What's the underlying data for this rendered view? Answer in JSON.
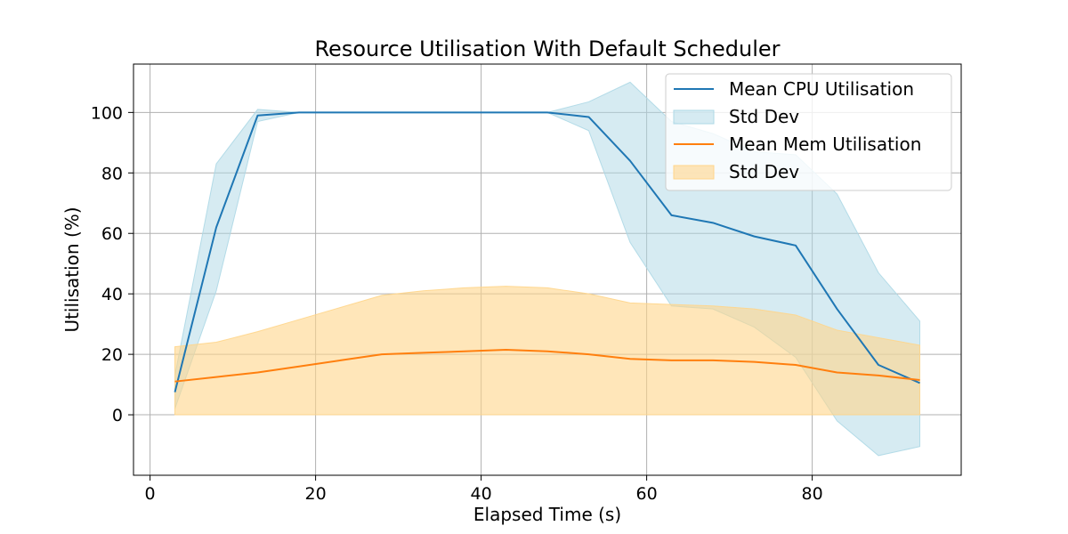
{
  "chart_data": {
    "type": "line",
    "title": "Resource Utilisation With Default Scheduler",
    "xlabel": "Elapsed Time (s)",
    "ylabel": "Utilisation (%)",
    "xlim": [
      -2,
      98
    ],
    "ylim": [
      -20,
      116
    ],
    "xticks": [
      0,
      20,
      40,
      60,
      80
    ],
    "yticks": [
      0,
      20,
      40,
      60,
      80,
      100
    ],
    "grid": true,
    "legend_position": "top-right",
    "x": [
      3,
      8,
      13,
      18,
      23,
      28,
      33,
      38,
      43,
      48,
      53,
      58,
      63,
      68,
      73,
      78,
      83,
      88,
      93
    ],
    "series": [
      {
        "name": "Mean CPU Utilisation",
        "band_name": "Std Dev",
        "color": "#1f77b4",
        "band_color": "#add8e6",
        "values": [
          7.5,
          62,
          99,
          100,
          100,
          100,
          100,
          100,
          100,
          100,
          98.5,
          84,
          66,
          63.5,
          59,
          56,
          35,
          16.5,
          10.5
        ],
        "upper": [
          13,
          83,
          101,
          100,
          100,
          100,
          100,
          100,
          100,
          100,
          103.5,
          110,
          97,
          93,
          87,
          86,
          73,
          47,
          31
        ],
        "lower": [
          2,
          41,
          97,
          100,
          100,
          100,
          100,
          100,
          100,
          100,
          94,
          57,
          36,
          35,
          29,
          19,
          -2,
          -13.5,
          -10.5
        ]
      },
      {
        "name": "Mean Mem Utilisation",
        "band_name": "Std Dev",
        "color": "#ff7f0e",
        "band_color": "#ffd58a",
        "values": [
          11,
          12.5,
          14,
          16,
          18,
          20,
          20.5,
          21,
          21.5,
          21,
          20,
          18.5,
          18,
          18,
          17.5,
          16.5,
          14,
          13,
          11.5
        ],
        "upper": [
          22.5,
          24,
          27.5,
          31.5,
          35.5,
          39.5,
          41,
          42,
          42.5,
          42,
          40,
          37,
          36.5,
          36,
          35,
          33,
          28,
          25.5,
          23
        ],
        "lower": [
          0,
          0,
          0,
          0,
          0,
          0,
          0,
          0,
          0,
          0,
          0,
          0,
          0,
          0,
          0,
          0,
          0,
          0,
          0
        ]
      }
    ]
  }
}
